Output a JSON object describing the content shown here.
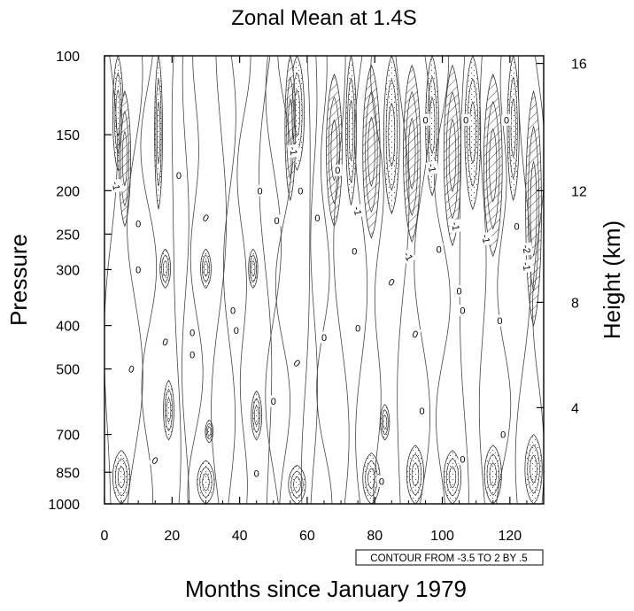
{
  "chart_data": {
    "type": "contour",
    "title": "Zonal Mean at 1.4S",
    "xlabel": "Months since January 1979",
    "ylabel": "Pressure",
    "ylabel_right": "Height (km)",
    "xlim": [
      0,
      130
    ],
    "ylim": [
      1000,
      100
    ],
    "y_scale": "log",
    "x_ticks": [
      0,
      20,
      40,
      60,
      80,
      100,
      120
    ],
    "y_ticks": [
      100,
      150,
      200,
      250,
      300,
      400,
      500,
      700,
      850,
      1000
    ],
    "right_ticks": [
      {
        "label": "16",
        "p": 104
      },
      {
        "label": "12",
        "p": 200
      },
      {
        "label": "8",
        "p": 355
      },
      {
        "label": "4",
        "p": 610
      }
    ],
    "contour_info": "CONTOUR FROM -3.5 TO 2 BY .5",
    "contour_labels": [
      {
        "text": "-1",
        "x": 3.5,
        "p": 195,
        "angle": 80
      },
      {
        "text": "0",
        "x": 22,
        "p": 185,
        "angle": 0
      },
      {
        "text": "0",
        "x": 30,
        "p": 230,
        "angle": 30
      },
      {
        "text": "0",
        "x": 10,
        "p": 237,
        "angle": 0
      },
      {
        "text": "0",
        "x": 10,
        "p": 300,
        "angle": 0
      },
      {
        "text": "-1",
        "x": 56,
        "p": 163,
        "angle": 80
      },
      {
        "text": "0",
        "x": 46,
        "p": 200,
        "angle": 0
      },
      {
        "text": "0",
        "x": 58,
        "p": 200,
        "angle": 0
      },
      {
        "text": "0",
        "x": 51,
        "p": 233,
        "angle": 0
      },
      {
        "text": "0",
        "x": 63,
        "p": 230,
        "angle": 0
      },
      {
        "text": "0",
        "x": 69,
        "p": 180,
        "angle": 0
      },
      {
        "text": "0",
        "x": 95,
        "p": 139,
        "angle": 0
      },
      {
        "text": "0",
        "x": 107,
        "p": 139,
        "angle": 0
      },
      {
        "text": "0",
        "x": 119,
        "p": 139,
        "angle": 0
      },
      {
        "text": "-1",
        "x": 97,
        "p": 178,
        "angle": 80
      },
      {
        "text": "-1",
        "x": 75,
        "p": 222,
        "angle": 80
      },
      {
        "text": "-1",
        "x": 104,
        "p": 240,
        "angle": 80
      },
      {
        "text": "-1",
        "x": 113,
        "p": 256,
        "angle": 80
      },
      {
        "text": "-2",
        "x": 125,
        "p": 270,
        "angle": 80
      },
      {
        "text": "-1",
        "x": 125,
        "p": 295,
        "angle": 80
      },
      {
        "text": "0",
        "x": 122,
        "p": 240,
        "angle": 0
      },
      {
        "text": "-1",
        "x": 90,
        "p": 280,
        "angle": 60
      },
      {
        "text": "0",
        "x": 74,
        "p": 273,
        "angle": 0
      },
      {
        "text": "0",
        "x": 99,
        "p": 270,
        "angle": 0
      },
      {
        "text": "0",
        "x": 85,
        "p": 320,
        "angle": 30
      },
      {
        "text": "0",
        "x": 105,
        "p": 335,
        "angle": 0
      },
      {
        "text": "0",
        "x": 106,
        "p": 370,
        "angle": 0
      },
      {
        "text": "0",
        "x": 117,
        "p": 390,
        "angle": 0
      },
      {
        "text": "0",
        "x": 38,
        "p": 370,
        "angle": 0
      },
      {
        "text": "0",
        "x": 39,
        "p": 410,
        "angle": 0
      },
      {
        "text": "0",
        "x": 26,
        "p": 415,
        "angle": 0
      },
      {
        "text": "0",
        "x": 18,
        "p": 435,
        "angle": 20
      },
      {
        "text": "0",
        "x": 26,
        "p": 465,
        "angle": 0
      },
      {
        "text": "0",
        "x": 65,
        "p": 425,
        "angle": 0
      },
      {
        "text": "0",
        "x": 75,
        "p": 405,
        "angle": 0
      },
      {
        "text": "0",
        "x": 92,
        "p": 418,
        "angle": 20
      },
      {
        "text": "0",
        "x": 57,
        "p": 485,
        "angle": 40
      },
      {
        "text": "0",
        "x": 8,
        "p": 500,
        "angle": 20
      },
      {
        "text": "0",
        "x": 50,
        "p": 590,
        "angle": 0
      },
      {
        "text": "0",
        "x": 94,
        "p": 620,
        "angle": 0
      },
      {
        "text": "0",
        "x": 118,
        "p": 700,
        "angle": 0
      },
      {
        "text": "0",
        "x": 15,
        "p": 800,
        "angle": 30
      },
      {
        "text": "0",
        "x": 45,
        "p": 855,
        "angle": 0
      },
      {
        "text": "0",
        "x": 82,
        "p": 890,
        "angle": 0
      },
      {
        "text": "0",
        "x": 106,
        "p": 795,
        "angle": 0
      }
    ],
    "shaded_positive": [
      {
        "x": 4,
        "p_top": 100,
        "p_bot": 180,
        "w": 1.6
      },
      {
        "x": 16,
        "p_top": 100,
        "p_bot": 220,
        "w": 1.2
      },
      {
        "x": 57,
        "p_top": 100,
        "p_bot": 180,
        "w": 2.2
      },
      {
        "x": 73,
        "p_top": 100,
        "p_bot": 215,
        "w": 1.6
      },
      {
        "x": 85,
        "p_top": 100,
        "p_bot": 225,
        "w": 2.4
      },
      {
        "x": 97,
        "p_top": 100,
        "p_bot": 205,
        "w": 2.0
      },
      {
        "x": 109,
        "p_top": 100,
        "p_bot": 220,
        "w": 2.4
      },
      {
        "x": 121,
        "p_top": 100,
        "p_bot": 210,
        "w": 1.8
      },
      {
        "x": 18,
        "p_top": 270,
        "p_bot": 330,
        "w": 1.6
      },
      {
        "x": 30,
        "p_top": 270,
        "p_bot": 330,
        "w": 1.6
      },
      {
        "x": 44,
        "p_top": 270,
        "p_bot": 330,
        "w": 1.4
      },
      {
        "x": 19,
        "p_top": 530,
        "p_bot": 720,
        "w": 1.6
      },
      {
        "x": 31,
        "p_top": 650,
        "p_bot": 730,
        "w": 1.2
      },
      {
        "x": 45,
        "p_top": 560,
        "p_bot": 720,
        "w": 1.6
      },
      {
        "x": 83,
        "p_top": 600,
        "p_bot": 720,
        "w": 1.4
      },
      {
        "x": 5,
        "p_top": 760,
        "p_bot": 1000,
        "w": 2.6
      },
      {
        "x": 30,
        "p_top": 800,
        "p_bot": 1000,
        "w": 2.6
      },
      {
        "x": 57,
        "p_top": 820,
        "p_bot": 1000,
        "w": 2.6
      },
      {
        "x": 79,
        "p_top": 770,
        "p_bot": 1000,
        "w": 2.6
      },
      {
        "x": 92,
        "p_top": 740,
        "p_bot": 1000,
        "w": 2.6
      },
      {
        "x": 103,
        "p_top": 760,
        "p_bot": 1000,
        "w": 2.6
      },
      {
        "x": 115,
        "p_top": 740,
        "p_bot": 1000,
        "w": 2.6
      },
      {
        "x": 127,
        "p_top": 700,
        "p_bot": 1000,
        "w": 2.6
      }
    ],
    "hatched_negative": [
      {
        "x": 6,
        "p_top": 120,
        "p_bot": 240,
        "w": 1.8
      },
      {
        "x": 55,
        "p_top": 100,
        "p_bot": 210,
        "w": 1.6
      },
      {
        "x": 68,
        "p_top": 110,
        "p_bot": 240,
        "w": 2.4
      },
      {
        "x": 79,
        "p_top": 105,
        "p_bot": 255,
        "w": 2.6
      },
      {
        "x": 91,
        "p_top": 105,
        "p_bot": 260,
        "w": 2.6
      },
      {
        "x": 103,
        "p_top": 105,
        "p_bot": 265,
        "w": 2.6
      },
      {
        "x": 115,
        "p_top": 110,
        "p_bot": 280,
        "w": 2.8
      },
      {
        "x": 127,
        "p_top": 120,
        "p_bot": 400,
        "w": 2.4
      }
    ]
  }
}
